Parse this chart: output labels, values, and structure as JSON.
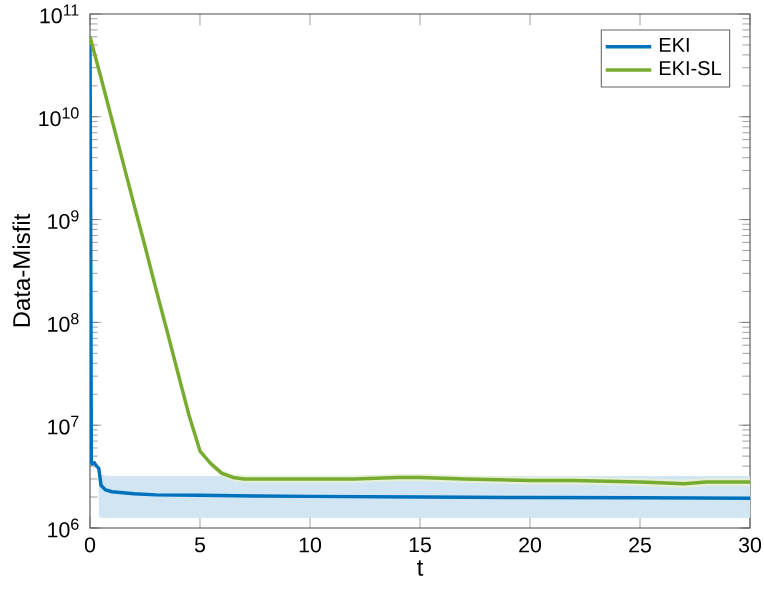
{
  "chart_data": {
    "type": "line",
    "xlabel": "t",
    "ylabel": "Data-Misfit",
    "log": "y",
    "xlim": [
      0,
      30
    ],
    "ylim": [
      1000000,
      100000000000
    ],
    "xticks": [
      0,
      5,
      10,
      15,
      20,
      25,
      30
    ],
    "yticks": [
      {
        "value": 1000000,
        "label": "10$^{6}$"
      },
      {
        "value": 10000000,
        "label": "10$^{7}$"
      },
      {
        "value": 100000000,
        "label": "10$^{8}$"
      },
      {
        "value": 1000000000,
        "label": "10$^{9}$"
      },
      {
        "value": 10000000000,
        "label": "10$^{10}$"
      },
      {
        "value": 100000000000,
        "label": "10$^{11}$"
      }
    ],
    "grid": false,
    "legend": "top right",
    "marker": "none",
    "line_style": "solid",
    "series": [
      {
        "name": "EKI",
        "color": "#0072bd",
        "x": [
          0,
          0.03,
          0.06,
          0.1,
          0.2,
          0.3,
          0.4,
          0.5,
          0.7,
          1,
          1.5,
          2,
          3,
          5,
          7.5,
          10,
          15,
          20,
          25,
          30
        ],
        "values": [
          60000000000,
          1000000000,
          4500000,
          4200000,
          4300000,
          4000000,
          3800000,
          2600000,
          2350000,
          2250000,
          2200000,
          2150000,
          2100000,
          2080000,
          2050000,
          2030000,
          2000000,
          1980000,
          1970000,
          1950000
        ],
        "lower": [
          null,
          null,
          null,
          null,
          null,
          null,
          1300000,
          1250000,
          1250000,
          1250000,
          1250000,
          1250000,
          1250000,
          1250000,
          1250000,
          1250000,
          1250000,
          1250000,
          1250000,
          1250000
        ],
        "upper": [
          null,
          null,
          null,
          null,
          null,
          null,
          3300000,
          3300000,
          3250000,
          3200000,
          3200000,
          3200000,
          3200000,
          3200000,
          3200000,
          3200000,
          3200000,
          3200000,
          3200000,
          3200000
        ]
      },
      {
        "name": "EKI-SL",
        "color": "#77ac30",
        "x": [
          0,
          0.5,
          1,
          1.5,
          2,
          2.5,
          3,
          3.5,
          4,
          4.5,
          5,
          5.5,
          6,
          6.5,
          7,
          8,
          10,
          12,
          14,
          15,
          17,
          20,
          22,
          25,
          27,
          28,
          30
        ],
        "values": [
          60000000000,
          24000000000,
          9300000000,
          3600000000,
          1400000000,
          550000000,
          210000000,
          83000000,
          32000000,
          12500000,
          5600000,
          4200000,
          3400000,
          3100000,
          3000000,
          3000000,
          3000000,
          3000000,
          3100000,
          3100000,
          3000000,
          2900000,
          2900000,
          2800000,
          2700000,
          2800000,
          2800000
        ],
        "lower": [
          null,
          null,
          null,
          null,
          null,
          null,
          null,
          null,
          null,
          null,
          null,
          3900000,
          3150000,
          2850000,
          2750000,
          2750000,
          2750000,
          2750000,
          2850000,
          2850000,
          2750000,
          2650000,
          2650000,
          2550000,
          2450000,
          2550000,
          2550000
        ],
        "upper": [
          null,
          null,
          null,
          null,
          null,
          null,
          null,
          null,
          null,
          null,
          null,
          4500000,
          3650000,
          3350000,
          3250000,
          3250000,
          3250000,
          3250000,
          3350000,
          3350000,
          3250000,
          3150000,
          3150000,
          3050000,
          2950000,
          3050000,
          3050000
        ]
      }
    ]
  }
}
